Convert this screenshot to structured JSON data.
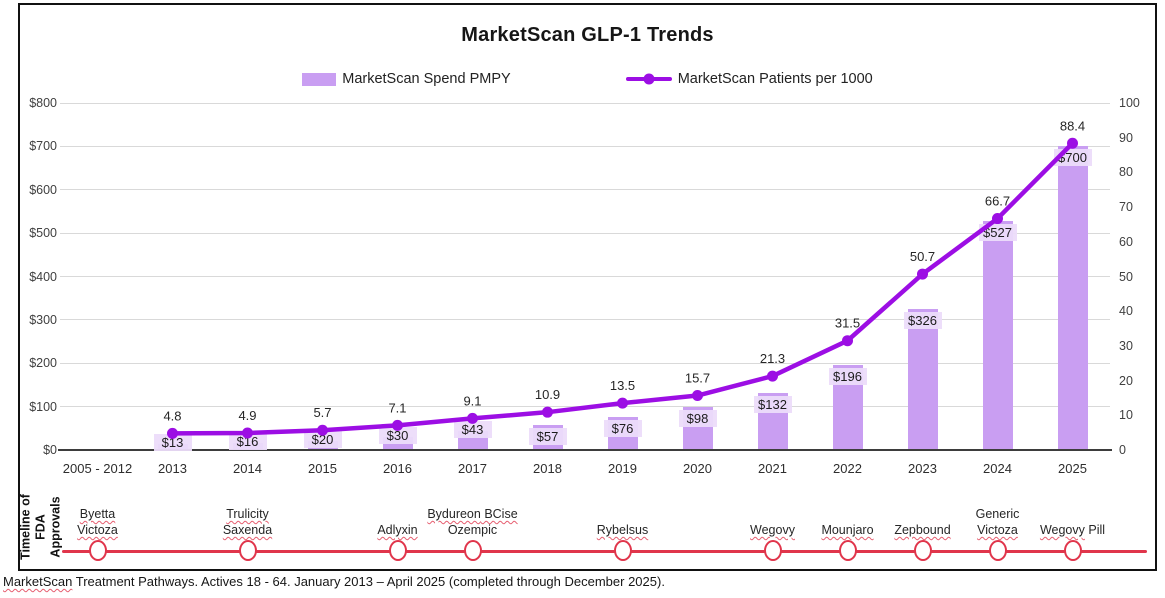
{
  "title": "MarketScan GLP-1 Trends",
  "legend": {
    "spend_label": "MarketScan Spend PMPY",
    "patients_label": "MarketScan Patients per 1000"
  },
  "colors": {
    "bar": "#c99ef2",
    "bar_label_bg": "#ecdcfa",
    "line": "#9c0ee4",
    "grid": "#d9d9d9",
    "axis_text": "#404040",
    "timeline_red": "#e0354b"
  },
  "chart_data": {
    "type": "bar+line combo",
    "title": "MarketScan GLP-1 Trends",
    "categories": [
      "2005 - 2012",
      "2013",
      "2014",
      "2015",
      "2016",
      "2017",
      "2018",
      "2019",
      "2020",
      "2021",
      "2022",
      "2023",
      "2024",
      "2025"
    ],
    "series": [
      {
        "name": "MarketScan Spend PMPY",
        "type": "bar",
        "axis": "left",
        "values": [
          null,
          13,
          16,
          20,
          30,
          43,
          57,
          76,
          98,
          132,
          196,
          326,
          527,
          700
        ],
        "labels": [
          null,
          "$13",
          "$16",
          "$20",
          "$30",
          "$43",
          "$57",
          "$76",
          "$98",
          "$132",
          "$196",
          "$326",
          "$527",
          "$700"
        ]
      },
      {
        "name": "MarketScan Patients per 1000",
        "type": "line",
        "axis": "right",
        "values": [
          null,
          4.8,
          4.9,
          5.7,
          7.1,
          9.1,
          10.9,
          13.5,
          15.7,
          21.3,
          31.5,
          50.7,
          66.7,
          88.4
        ],
        "labels": [
          null,
          "4.8",
          "4.9",
          "5.7",
          "7.1",
          "9.1",
          "10.9",
          "13.5",
          "15.7",
          "21.3",
          "31.5",
          "50.7",
          "66.7",
          "88.4"
        ]
      }
    ],
    "left_axis": {
      "min": 0,
      "max": 800,
      "step": 100,
      "tick_labels": [
        "$0",
        "$100",
        "$200",
        "$300",
        "$400",
        "$500",
        "$600",
        "$700",
        "$800"
      ]
    },
    "right_axis": {
      "min": 0,
      "max": 100,
      "step": 10,
      "tick_labels": [
        "0",
        "10",
        "20",
        "30",
        "40",
        "50",
        "60",
        "70",
        "80",
        "90",
        "100"
      ]
    },
    "gridlines": true,
    "legend_position": "top"
  },
  "timeline": {
    "axis_label_lines": [
      "Timeline of",
      "FDA",
      "Approvals"
    ],
    "items": [
      {
        "col": 0,
        "lines": [
          "Byetta",
          "Victoza"
        ]
      },
      {
        "col": 2,
        "lines": [
          "Trulicity",
          "Saxenda"
        ]
      },
      {
        "col": 4,
        "lines": [
          "Adlyxin"
        ]
      },
      {
        "col": 5,
        "lines": [
          "Bydureon BCise",
          "Ozempic"
        ]
      },
      {
        "col": 7,
        "lines": [
          "Rybelsus"
        ]
      },
      {
        "col": 9,
        "lines": [
          "Wegovy"
        ]
      },
      {
        "col": 10,
        "lines": [
          "Mounjaro"
        ]
      },
      {
        "col": 11,
        "lines": [
          "Zepbound"
        ]
      },
      {
        "col": 12,
        "lines": [
          "Generic",
          "Victoza"
        ]
      },
      {
        "col": 13,
        "lines": [
          "Wegovy Pill"
        ]
      }
    ],
    "spellcheck_words": [
      "Byetta",
      "Victoza",
      "Trulicity",
      "Saxenda",
      "Adlyxin",
      "Bydureon",
      "BCise",
      "Rybelsus",
      "Wegovy",
      "Mounjaro",
      "Zepbound"
    ]
  },
  "footer": {
    "spellchecked_word": "MarketScan",
    "rest": " Treatment Pathways. Actives 18 - 64. January 2013 – April 2025 (completed through December 2025)."
  }
}
